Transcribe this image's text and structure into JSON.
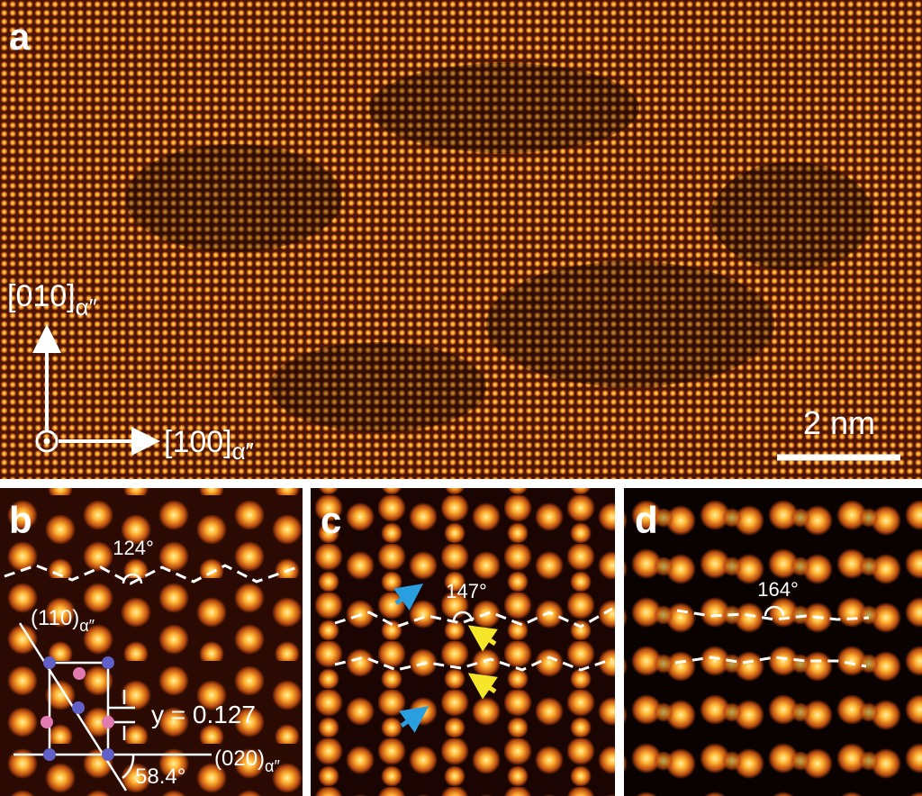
{
  "panel_a": {
    "label": "a",
    "axis_up": {
      "index": "[010]",
      "phase": "α″"
    },
    "axis_right": {
      "index": "[100]",
      "phase": "α″"
    },
    "scale_bar": "2 nm"
  },
  "panel_b": {
    "label": "b",
    "angle": "124°",
    "plane_110": {
      "index": "(110)",
      "phase": "α″"
    },
    "plane_020": {
      "index": "(020)",
      "phase": "α″"
    },
    "shift": "y = 0.127",
    "cell_angle": "58.4°"
  },
  "panel_c": {
    "label": "c",
    "angle": "147°"
  },
  "panel_d": {
    "label": "d",
    "angle": "164°"
  }
}
